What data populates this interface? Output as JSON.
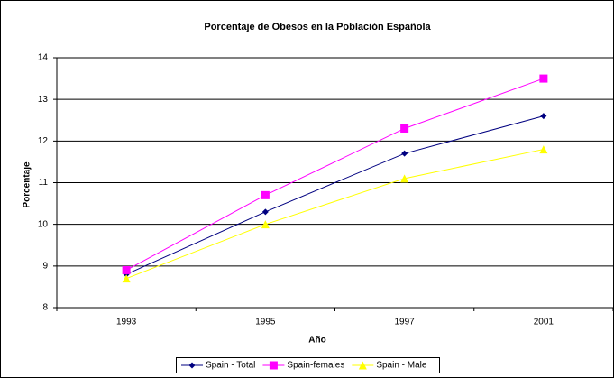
{
  "chart_data": {
    "type": "line",
    "title": "Porcentaje de Obesos en la Población Española",
    "x_label": "Año",
    "y_label": "Porcentaje",
    "categories": [
      "1993",
      "1995",
      "1997",
      "2001"
    ],
    "series": [
      {
        "name": "Spain - Total",
        "color": "#000080",
        "marker": "diamond",
        "values": [
          8.8,
          10.3,
          11.7,
          12.6
        ]
      },
      {
        "name": "Spain-females",
        "color": "#ff00ff",
        "marker": "square",
        "values": [
          8.9,
          10.7,
          12.3,
          13.5
        ]
      },
      {
        "name": "Spain - Male",
        "color": "#ffff00",
        "marker": "triangle",
        "values": [
          8.7,
          10.0,
          11.1,
          11.8
        ]
      }
    ],
    "ylim": [
      8,
      14
    ],
    "yticks": [
      8,
      9,
      10,
      11,
      12,
      13,
      14
    ],
    "grid": true,
    "legend": "bottom"
  }
}
